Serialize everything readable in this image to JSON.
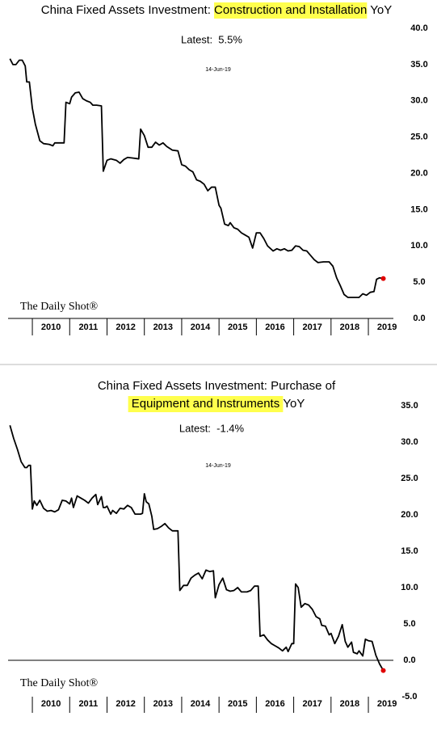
{
  "chart_data": [
    {
      "type": "line",
      "title_lines": [
        [
          {
            "text": "China Fixed Assets Investment: ",
            "highlight": false
          },
          {
            "text": "Construction and Installation",
            "highlight": true
          },
          {
            "text": " YoY",
            "highlight": false
          }
        ]
      ],
      "subtitle": "Latest:  5.5%",
      "date": "14-Jun-19",
      "watermark": "The Daily Shot®",
      "highlight_color": "#ffff4d",
      "color": "#000000",
      "last_point_color": "#e00000",
      "grid": false,
      "xlim": [
        2009.35,
        2019.67
      ],
      "xticks": [
        2010,
        2011,
        2012,
        2013,
        2014,
        2015,
        2016,
        2017,
        2018,
        2019
      ],
      "ylim": [
        0,
        40
      ],
      "yticks": [
        {
          "value": 0,
          "label": "0.0"
        },
        {
          "value": 5,
          "label": "5.0"
        },
        {
          "value": 10,
          "label": "10.0"
        },
        {
          "value": 15,
          "label": "15.0"
        },
        {
          "value": 20,
          "label": "20.0"
        },
        {
          "value": 25,
          "label": "25.0"
        },
        {
          "value": 30,
          "label": "30.0"
        },
        {
          "value": 35,
          "label": "35.0"
        },
        {
          "value": 40,
          "label": "40.0"
        }
      ],
      "x": [
        2009.4,
        2009.48,
        2009.56,
        2009.65,
        2009.73,
        2009.81,
        2009.85,
        2009.92,
        2010.0,
        2010.08,
        2010.2,
        2010.3,
        2010.45,
        2010.55,
        2010.6,
        2010.7,
        2010.85,
        2010.9,
        2011.0,
        2011.05,
        2011.15,
        2011.25,
        2011.35,
        2011.45,
        2011.55,
        2011.62,
        2011.72,
        2011.85,
        2011.9,
        2012.0,
        2012.1,
        2012.25,
        2012.35,
        2012.45,
        2012.55,
        2012.7,
        2012.85,
        2012.9,
        2013.0,
        2013.1,
        2013.2,
        2013.3,
        2013.4,
        2013.5,
        2013.6,
        2013.75,
        2013.9,
        2014.0,
        2014.1,
        2014.2,
        2014.3,
        2014.4,
        2014.5,
        2014.6,
        2014.7,
        2014.8,
        2014.9,
        2015.0,
        2015.05,
        2015.15,
        2015.25,
        2015.3,
        2015.4,
        2015.5,
        2015.6,
        2015.7,
        2015.8,
        2015.9,
        2016.0,
        2016.1,
        2016.2,
        2016.3,
        2016.45,
        2016.55,
        2016.65,
        2016.75,
        2016.85,
        2016.95,
        2017.05,
        2017.15,
        2017.25,
        2017.35,
        2017.45,
        2017.55,
        2017.65,
        2017.8,
        2017.95,
        2018.05,
        2018.15,
        2018.25,
        2018.35,
        2018.45,
        2018.6,
        2018.75,
        2018.85,
        2018.95,
        2019.05,
        2019.15,
        2019.22,
        2019.3,
        2019.4
      ],
      "values": [
        35.8,
        35.0,
        35.0,
        35.6,
        35.6,
        34.8,
        32.6,
        32.6,
        29.0,
        26.8,
        24.5,
        24.1,
        24.0,
        23.8,
        24.2,
        24.2,
        24.2,
        29.8,
        29.6,
        30.5,
        31.1,
        31.2,
        30.3,
        30.0,
        29.8,
        29.4,
        29.4,
        29.3,
        20.3,
        21.8,
        22.0,
        21.8,
        21.4,
        21.9,
        22.2,
        22.1,
        22.0,
        26.1,
        25.2,
        23.6,
        23.6,
        24.3,
        23.9,
        24.2,
        23.7,
        23.2,
        23.1,
        21.2,
        21.0,
        20.5,
        20.2,
        19.1,
        18.9,
        18.5,
        17.6,
        18.1,
        18.1,
        15.6,
        15.2,
        13.0,
        12.8,
        13.2,
        12.5,
        12.3,
        11.8,
        11.5,
        11.2,
        9.7,
        11.8,
        11.8,
        11.0,
        10.0,
        9.3,
        9.6,
        9.4,
        9.6,
        9.3,
        9.4,
        10.0,
        9.9,
        9.4,
        9.3,
        8.7,
        8.1,
        7.7,
        7.8,
        7.8,
        7.2,
        5.6,
        4.5,
        3.3,
        2.9,
        2.9,
        2.9,
        3.4,
        3.2,
        3.6,
        3.7,
        5.4,
        5.6,
        5.5
      ]
    },
    {
      "type": "line",
      "title_lines": [
        [
          {
            "text": "China Fixed Assets Investment: Purchase of",
            "highlight": false
          }
        ],
        [
          {
            "text": " Equipment and Instruments ",
            "highlight": true
          },
          {
            "text": "YoY",
            "highlight": false
          }
        ]
      ],
      "subtitle": "Latest:  -1.4%",
      "date": "14-Jun-19",
      "watermark": "The Daily Shot®",
      "highlight_color": "#ffff4d",
      "color": "#000000",
      "last_point_color": "#e00000",
      "grid": false,
      "xlim": [
        2009.35,
        2019.67
      ],
      "xticks": [
        2010,
        2011,
        2012,
        2013,
        2014,
        2015,
        2016,
        2017,
        2018,
        2019
      ],
      "ylim": [
        -5,
        39
      ],
      "yticks": [
        {
          "value": -5,
          "label": "-5.0"
        },
        {
          "value": 0,
          "label": "0.0"
        },
        {
          "value": 5,
          "label": "5.0"
        },
        {
          "value": 10,
          "label": "10.0"
        },
        {
          "value": 15,
          "label": "15.0"
        },
        {
          "value": 20,
          "label": "20.0"
        },
        {
          "value": 25,
          "label": "25.0"
        },
        {
          "value": 30,
          "label": "30.0"
        },
        {
          "value": 35,
          "label": "35.0"
        }
      ],
      "x": [
        2009.4,
        2009.5,
        2009.6,
        2009.7,
        2009.8,
        2009.85,
        2009.9,
        2009.95,
        2010.0,
        2010.05,
        2010.12,
        2010.2,
        2010.3,
        2010.4,
        2010.5,
        2010.6,
        2010.7,
        2010.8,
        2010.9,
        2011.0,
        2011.05,
        2011.1,
        2011.2,
        2011.3,
        2011.4,
        2011.5,
        2011.6,
        2011.7,
        2011.75,
        2011.85,
        2011.9,
        2011.95,
        2012.0,
        2012.1,
        2012.15,
        2012.25,
        2012.35,
        2012.45,
        2012.55,
        2012.65,
        2012.75,
        2012.9,
        2012.95,
        2013.0,
        2013.05,
        2013.12,
        2013.2,
        2013.25,
        2013.35,
        2013.45,
        2013.55,
        2013.65,
        2013.75,
        2013.85,
        2013.9,
        2013.95,
        2014.05,
        2014.15,
        2014.25,
        2014.35,
        2014.45,
        2014.55,
        2014.65,
        2014.75,
        2014.85,
        2014.9,
        2015.0,
        2015.1,
        2015.2,
        2015.3,
        2015.4,
        2015.5,
        2015.6,
        2015.75,
        2015.85,
        2015.95,
        2016.05,
        2016.1,
        2016.2,
        2016.3,
        2016.4,
        2016.5,
        2016.6,
        2016.7,
        2016.8,
        2016.85,
        2016.95,
        2017.0,
        2017.05,
        2017.12,
        2017.2,
        2017.3,
        2017.4,
        2017.5,
        2017.6,
        2017.7,
        2017.75,
        2017.85,
        2017.95,
        2018.0,
        2018.1,
        2018.2,
        2018.3,
        2018.38,
        2018.45,
        2018.55,
        2018.6,
        2018.7,
        2018.75,
        2018.85,
        2018.92,
        2019.0,
        2019.1,
        2019.2,
        2019.3,
        2019.4
      ],
      "values": [
        32.3,
        30.5,
        29.0,
        27.3,
        26.5,
        26.5,
        26.8,
        26.8,
        20.8,
        21.9,
        21.3,
        22.0,
        20.9,
        20.5,
        20.6,
        20.4,
        20.7,
        22.0,
        21.9,
        21.5,
        22.3,
        21.0,
        22.6,
        22.3,
        22.0,
        21.6,
        22.3,
        22.8,
        21.4,
        22.5,
        21.0,
        21.0,
        21.2,
        20.1,
        20.6,
        20.2,
        20.9,
        20.8,
        21.3,
        21.0,
        20.1,
        20.1,
        20.2,
        22.9,
        21.8,
        21.5,
        19.8,
        18.0,
        18.1,
        18.4,
        18.8,
        18.2,
        17.8,
        17.8,
        17.8,
        9.6,
        10.3,
        10.3,
        11.3,
        11.7,
        12.0,
        11.2,
        12.4,
        12.2,
        12.3,
        8.6,
        10.4,
        11.3,
        9.7,
        9.5,
        9.6,
        10.0,
        9.4,
        9.4,
        9.6,
        10.2,
        10.2,
        3.3,
        3.5,
        2.8,
        2.3,
        2.0,
        1.7,
        1.3,
        1.8,
        1.2,
        2.3,
        2.3,
        10.5,
        10.0,
        7.3,
        7.8,
        7.6,
        7.0,
        6.0,
        5.7,
        4.8,
        4.7,
        3.5,
        3.7,
        2.3,
        3.3,
        4.9,
        2.6,
        1.8,
        2.5,
        1.1,
        0.9,
        1.3,
        0.6,
        2.9,
        2.7,
        2.6,
        0.7,
        -0.5,
        -1.4
      ]
    }
  ]
}
